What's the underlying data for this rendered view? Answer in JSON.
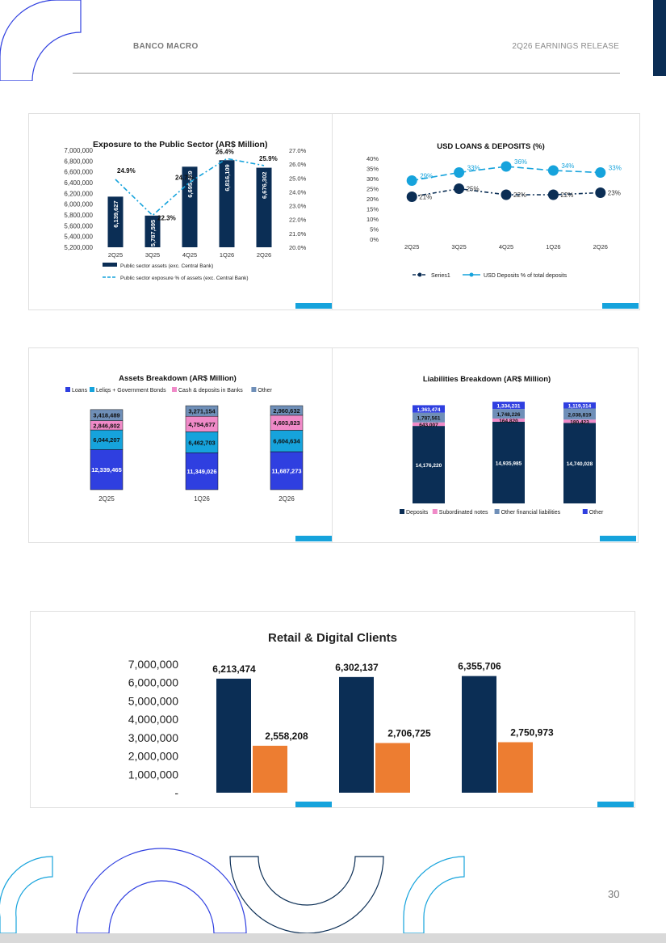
{
  "header": {
    "company": "BANCO MACRO",
    "report": "2Q26 EARNINGS RELEASE"
  },
  "page_number": "30",
  "colors": {
    "navy": "#0b2e55",
    "cyan": "#16a3dc",
    "orange": "#ed7d31",
    "blue": "#2f3fe0",
    "pink": "#f08ac8",
    "grey": "#7f9fc4",
    "steel": "#6f8fb8"
  },
  "chart_data": [
    {
      "id": "public-sector",
      "type": "bar",
      "title": "Exposure to the Public Sector (AR$ Million)",
      "categories": [
        "2Q25",
        "3Q25",
        "4Q25",
        "1Q26",
        "2Q26"
      ],
      "series": [
        {
          "name": "Public sector assets (exc. Central Bank)",
          "values": [
            6139627,
            5787595,
            6695429,
            6816109,
            6676302
          ],
          "labels": [
            "6,139,627",
            "5,787,595",
            "6,695,429",
            "6,816,109",
            "6,676,302"
          ]
        },
        {
          "name": "Public sector exposure % of assets (exc. Central Bank)",
          "type": "line",
          "values": [
            24.9,
            22.3,
            24.7,
            26.4,
            25.9
          ],
          "labels": [
            "24.9%",
            "22.3%",
            "24.7%",
            "26.4%",
            "25.9%"
          ]
        }
      ],
      "ylim": [
        5200000,
        7000000
      ],
      "y2lim": [
        20,
        27
      ],
      "yticks": [
        "7,000,000",
        "6,800,000",
        "6,600,000",
        "6,400,000",
        "6,200,000",
        "6,000,000",
        "5,800,000",
        "5,600,000",
        "5,400,000",
        "5,200,000"
      ],
      "y2ticks": [
        "27.0%",
        "26.0%",
        "25.0%",
        "24.0%",
        "23.0%",
        "22.0%",
        "21.0%",
        "20.0%"
      ]
    },
    {
      "id": "usd-loans-deposits",
      "type": "line",
      "title": "USD LOANS & DEPOSITS (%)",
      "categories": [
        "2Q25",
        "3Q25",
        "4Q25",
        "1Q26",
        "2Q26"
      ],
      "series": [
        {
          "name": "Series1",
          "values": [
            21,
            25,
            22,
            22,
            23
          ],
          "labels": [
            "21%",
            "25%",
            "22%",
            "22%",
            "23%"
          ]
        },
        {
          "name": "USD Deposits % of total deposits",
          "values": [
            29,
            33,
            36,
            34,
            33
          ],
          "labels": [
            "29%",
            "33%",
            "36%",
            "34%",
            "33%"
          ]
        }
      ],
      "ylim": [
        0,
        40
      ],
      "yticks": [
        "40%",
        "35%",
        "30%",
        "25%",
        "20%",
        "15%",
        "10%",
        "5%",
        "0%"
      ]
    },
    {
      "id": "assets-breakdown",
      "type": "bar",
      "stacked": true,
      "title": "Assets Breakdown (AR$ Million)",
      "categories": [
        "2Q25",
        "1Q26",
        "2Q26"
      ],
      "series": [
        {
          "name": "Loans",
          "values": [
            12339465,
            11349026,
            11687273
          ],
          "labels": [
            "12,339,465",
            "11,349,026",
            "11,687,273"
          ]
        },
        {
          "name": "Leliqs + Government Bonds",
          "values": [
            6044207,
            6462703,
            6604634
          ],
          "labels": [
            "6,044,207",
            "6,462,703",
            "6,604,634"
          ]
        },
        {
          "name": "Cash & deposits in Banks",
          "values": [
            2846802,
            4754677,
            4603823
          ],
          "labels": [
            "2,846,802",
            "4,754,677",
            "4,603,823"
          ]
        },
        {
          "name": "Other",
          "values": [
            3418489,
            3271154,
            2960632
          ],
          "labels": [
            "3,418,489",
            "3,271,154",
            "2,960,632"
          ]
        }
      ]
    },
    {
      "id": "liabilities-breakdown",
      "type": "bar",
      "stacked": true,
      "title": "Liabilities Breakdown (AR$ Million)",
      "categories": [
        "",
        "",
        ""
      ],
      "series": [
        {
          "name": "Deposits",
          "values": [
            14176220,
            14935985,
            14740028
          ],
          "labels": [
            "14,176,220",
            "14,935,985",
            "14,740,028"
          ]
        },
        {
          "name": "Subordinated notes",
          "values": [
            643007,
            164820,
            180423
          ],
          "labels": [
            "643,007",
            "164,820",
            "180,423"
          ]
        },
        {
          "name": "Other financial liabilities",
          "values": [
            1787561,
            1748226,
            2038819
          ],
          "labels": [
            "1,787,561",
            "1,748,226",
            "2,038,819"
          ]
        },
        {
          "name": "Other",
          "values": [
            1363474,
            1334231,
            1119314
          ],
          "labels": [
            "1,363,474",
            "1,334,231",
            "1,119,314"
          ]
        }
      ]
    },
    {
      "id": "retail-digital-clients",
      "type": "bar",
      "title": "Retail & Digital Clients",
      "categories": [
        "",
        "",
        ""
      ],
      "series": [
        {
          "name": "",
          "values": [
            6213474,
            6302137,
            6355706
          ],
          "labels": [
            "6,213,474",
            "6,302,137",
            "6,355,706"
          ]
        },
        {
          "name": "",
          "values": [
            2558208,
            2706725,
            2750973
          ],
          "labels": [
            "2,558,208",
            "2,706,725",
            "2,750,973"
          ]
        }
      ],
      "ylim": [
        0,
        7000000
      ],
      "yticks": [
        "7,000,000",
        "6,000,000",
        "5,000,000",
        "4,000,000",
        "3,000,000",
        "2,000,000",
        "1,000,000",
        "-"
      ]
    }
  ]
}
